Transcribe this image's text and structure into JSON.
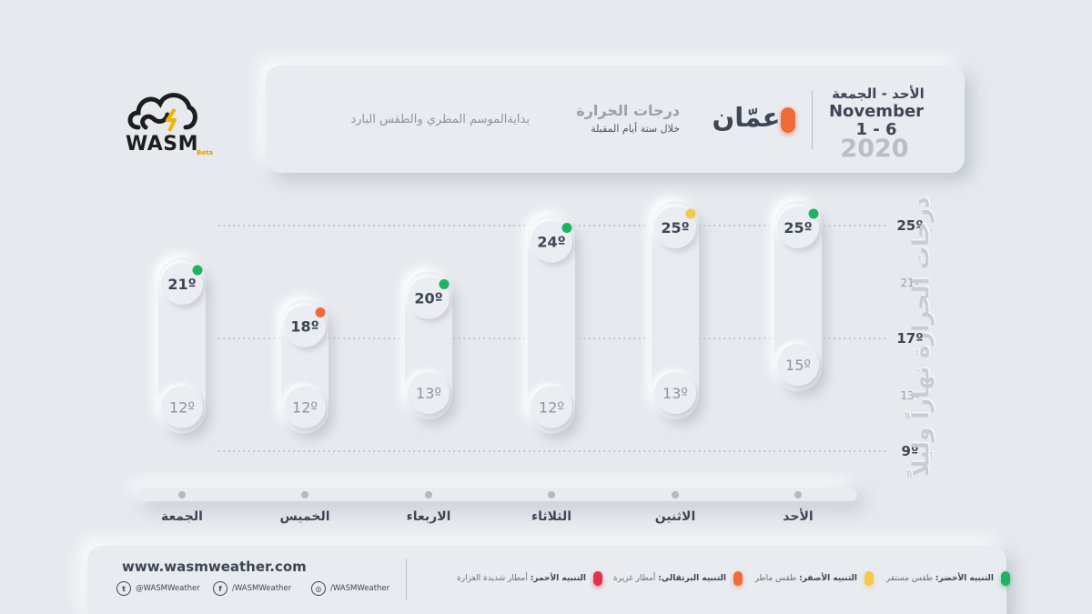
{
  "logo": {
    "text": "WASM",
    "beta": "Beta"
  },
  "header": {
    "days": "الأحد - الجمعة",
    "month": "November",
    "range": "1 - 6",
    "year": "2020",
    "city": "عمّان",
    "city_color": "#ef6b3a",
    "title": "درجات الحرارة",
    "subtitle": "خلال ستة أيام المقبلة",
    "description": "بدايةالموسم المطري والطقس البارد"
  },
  "chart_data": {
    "type": "range-bar",
    "ylabel": "درجات الحرارة نهاراً وليلاً",
    "ylim": [
      9,
      25
    ],
    "y_ticks": [
      {
        "value": 25,
        "label": "25º",
        "major": true
      },
      {
        "value": 21,
        "label": "21º",
        "major": false
      },
      {
        "value": 17,
        "label": "17º",
        "major": true
      },
      {
        "value": 13,
        "label": "13º",
        "major": false
      },
      {
        "value": 9,
        "label": "9º",
        "major": true
      }
    ],
    "categories": [
      "الجمعة",
      "الخميس",
      "الاربعاء",
      "الثلاثاء",
      "الاثنين",
      "الأحد"
    ],
    "series": [
      {
        "name": "high",
        "values": [
          21,
          18,
          20,
          24,
          25,
          25
        ],
        "labels": [
          "21º",
          "18º",
          "20º",
          "24º",
          "25º",
          "25º"
        ]
      },
      {
        "name": "low",
        "values": [
          12,
          12,
          13,
          12,
          13,
          15
        ],
        "labels": [
          "12º",
          "12º",
          "13º",
          "12º",
          "13º",
          "15º"
        ]
      }
    ],
    "alert_colors": [
      "#1fb35f",
      "#ef6b3a",
      "#1fb35f",
      "#1fb35f",
      "#f4c84a",
      "#1fb35f"
    ]
  },
  "footer": {
    "site": "www.wasmweather.com",
    "twitter": "@WASMWeather",
    "facebook": "/WASMWeather",
    "instagram": "/WASMWeather",
    "alerts": [
      {
        "title": "التنبيه الأخضر:",
        "text": "طقس مستقر",
        "color": "#1fb35f"
      },
      {
        "title": "التنبيه الأصفر:",
        "text": "طقس ماطر",
        "color": "#f4c84a"
      },
      {
        "title": "التنبيه البرتقالي:",
        "text": "أمطار غزيرة",
        "color": "#ef6b3a"
      },
      {
        "title": "التنبيه الأحمر:",
        "text": "أمطار شديدة الغزارة",
        "color": "#e0334a"
      }
    ]
  }
}
